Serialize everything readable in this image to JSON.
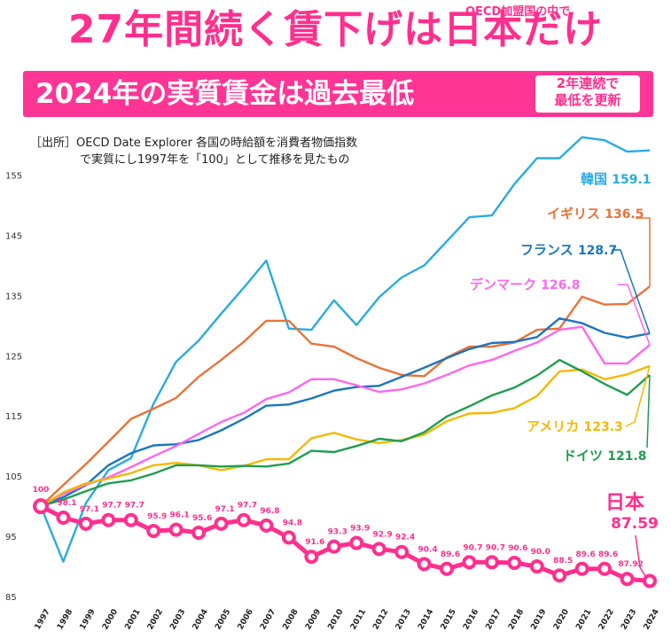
{
  "header": {
    "title": "27年間続く賃下げは日本だけ",
    "tag": "OECD加盟国の中で",
    "subtitle": "2024年の実質賃金は過去最低",
    "badge_line1": "2年連続で",
    "badge_line2": "最低を更新"
  },
  "source": {
    "line1": "［出所］OECD Date Explorer 各国の時給額を消費者物価指数",
    "line2": "で実質にし1997年を「100」として推移を見たもの"
  },
  "chart_data": {
    "type": "line",
    "x": [
      "1997",
      "1998",
      "1999",
      "2000",
      "2001",
      "2002",
      "2003",
      "2004",
      "2005",
      "2006",
      "2007",
      "2008",
      "2009",
      "2010",
      "2011",
      "2012",
      "2013",
      "2014",
      "2015",
      "2016",
      "2017",
      "2018",
      "2019",
      "2020",
      "2021",
      "2022",
      "2023",
      "2024"
    ],
    "ylim": [
      85,
      162
    ],
    "yticks": [
      85,
      95,
      105,
      115,
      125,
      135,
      145,
      155
    ],
    "grid": false,
    "series": [
      {
        "name": "韓国",
        "end_label": "159.1",
        "color": "#29abe2",
        "values": [
          100,
          90.8,
          100.5,
          106,
          108,
          117,
          124,
          127.5,
          132,
          136.3,
          140.8,
          129.5,
          129.3,
          134.2,
          130.1,
          134.7,
          138,
          140,
          144,
          148,
          148.3,
          153.5,
          157.8,
          157.8,
          161.3,
          160.8,
          158.9,
          159.1
        ]
      },
      {
        "name": "イギリス",
        "end_label": "136.5",
        "color": "#e8733a",
        "values": [
          100,
          103.5,
          107,
          110.7,
          114.5,
          116.2,
          118,
          121.5,
          124.3,
          127.3,
          130.8,
          130.8,
          127,
          126.5,
          124.6,
          123,
          121.8,
          121.6,
          124.7,
          126.5,
          126.5,
          127.2,
          129.3,
          129.5,
          134.8,
          133.5,
          133.6,
          136.5
        ]
      },
      {
        "name": "フランス",
        "end_label": "128.7",
        "color": "#1c75bc",
        "values": [
          100,
          101.5,
          103.5,
          106.8,
          108.8,
          110.1,
          110.3,
          111,
          112.6,
          114.5,
          116.7,
          116.9,
          117.9,
          119.2,
          119.8,
          120,
          121.5,
          123,
          124.6,
          126.1,
          127.1,
          127.3,
          128.1,
          131.2,
          130.4,
          128.8,
          128,
          128.7
        ]
      },
      {
        "name": "デンマーク",
        "end_label": "126.8",
        "color": "#ff66ee",
        "values": [
          100,
          102,
          103.6,
          104.8,
          106.5,
          108.3,
          110,
          112,
          114,
          115.5,
          117.8,
          118.9,
          121.1,
          121.1,
          120.1,
          119,
          119.4,
          120.4,
          121.8,
          123.4,
          124.3,
          125.8,
          127.2,
          129.3,
          129.8,
          123.7,
          123.7,
          126.8
        ]
      },
      {
        "name": "アメリカ",
        "end_label": "123.3",
        "color": "#f5b800",
        "values": [
          100,
          102.3,
          103.8,
          104.6,
          105.5,
          106.8,
          107.2,
          106.8,
          106,
          106.7,
          107.8,
          107.8,
          111.3,
          112.2,
          111.1,
          110.5,
          111,
          111.9,
          114.1,
          115.4,
          115.5,
          116.3,
          118.3,
          122.4,
          122.7,
          121.1,
          121.9,
          123.3
        ]
      },
      {
        "name": "ドイツ",
        "end_label": "121.8",
        "color": "#1e9e50",
        "values": [
          100,
          101.1,
          102.5,
          103.8,
          104.3,
          105.4,
          106.8,
          106.8,
          106.6,
          106.7,
          106.6,
          107.1,
          109.2,
          109,
          110,
          111.2,
          110.8,
          112.3,
          114.9,
          116.6,
          118.4,
          119.7,
          121.7,
          124.3,
          122.4,
          120.3,
          118.5,
          121.8
        ]
      },
      {
        "name": "日本",
        "end_label": "87.59",
        "color": "#ff2f8e",
        "values": [
          100,
          98.1,
          97.1,
          97.7,
          97.7,
          95.9,
          96.1,
          95.6,
          97.1,
          97.7,
          96.8,
          94.8,
          91.6,
          93.3,
          93.9,
          92.9,
          92.4,
          90.4,
          89.6,
          90.7,
          90.7,
          90.6,
          90.0,
          88.5,
          89.6,
          89.6,
          87.92,
          87.59
        ],
        "labels": [
          "100",
          "98.1",
          "97.1",
          "97.7",
          "97.7",
          "95.9",
          "96.1",
          "95.6",
          "97.1",
          "97.7",
          "96.8",
          "94.8",
          "91.6",
          "93.3",
          "93.9",
          "92.9",
          "92.4",
          "90.4",
          "89.6",
          "90.7",
          "90.7",
          "90.6",
          "90.0",
          "88.5",
          "89.6",
          "89.6",
          "87.92",
          "87.59"
        ]
      }
    ]
  }
}
